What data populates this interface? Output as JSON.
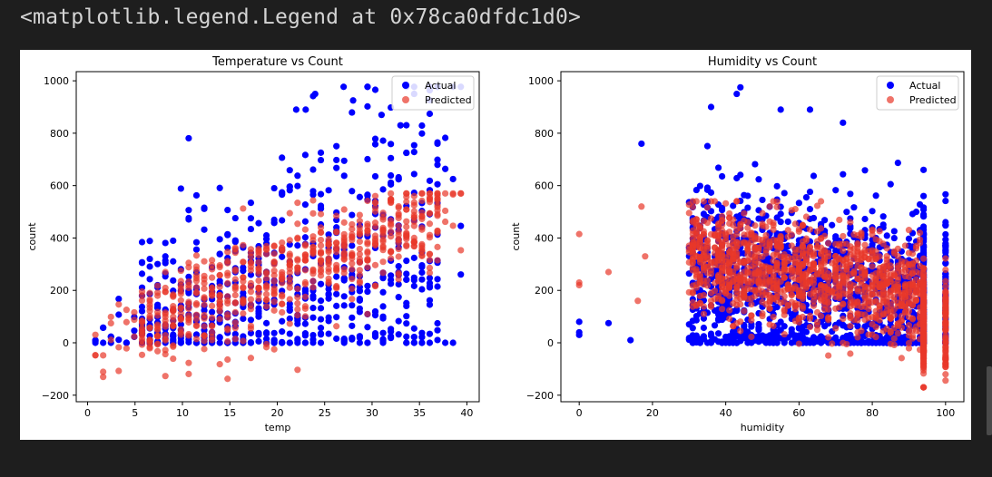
{
  "output_line": "<matplotlib.legend.Legend at 0x78ca0dfdc1d0>",
  "colors": {
    "actual": "#0000ff",
    "predicted": "#e8382a",
    "background": "#1e1e1e"
  },
  "chart_data": [
    {
      "type": "scatter",
      "title": "Temperature vs Count",
      "xlabel": "temp",
      "ylabel": "count",
      "xlim": [
        -1.2,
        41.3
      ],
      "ylim": [
        -225,
        1035
      ],
      "xticks": [
        0,
        5,
        10,
        15,
        20,
        25,
        30,
        35,
        40
      ],
      "yticks": [
        -200,
        0,
        200,
        400,
        600,
        800,
        1000
      ],
      "legend": {
        "placement": "top-right",
        "entries": [
          "Actual",
          "Predicted"
        ]
      },
      "series": [
        {
          "name": "Actual",
          "color": "#0000ff",
          "summary": "temp 0.8–39.4 (discrete steps ~0.82), count 0–977, spread widens with temp; max ~977 at temp ~27"
        },
        {
          "name": "Predicted",
          "color": "#e8382a",
          "summary": "linear trend from about 0 at temp 1 to about 450 at temp 35, residual spread ~±150, min ~-170"
        }
      ]
    },
    {
      "type": "scatter",
      "title": "Humidity vs Count",
      "xlabel": "humidity",
      "ylabel": "count",
      "xlim": [
        -5,
        105
      ],
      "ylim": [
        -225,
        1035
      ],
      "xticks": [
        0,
        20,
        40,
        60,
        80,
        100
      ],
      "yticks": [
        -200,
        0,
        200,
        400,
        600,
        800,
        1000
      ],
      "legend": {
        "placement": "top-right",
        "entries": [
          "Actual",
          "Predicted"
        ]
      },
      "series": [
        {
          "name": "Actual",
          "color": "#0000ff",
          "summary": "humidity 0–100, count 0–977, densest between humidity 35–90, high counts (>800) near humidity 35–75"
        },
        {
          "name": "Predicted",
          "color": "#e8382a",
          "summary": "mostly 0–500 across humidity 20–100, decreasing with humidity, min ~-170 near humidity 100"
        }
      ]
    }
  ]
}
